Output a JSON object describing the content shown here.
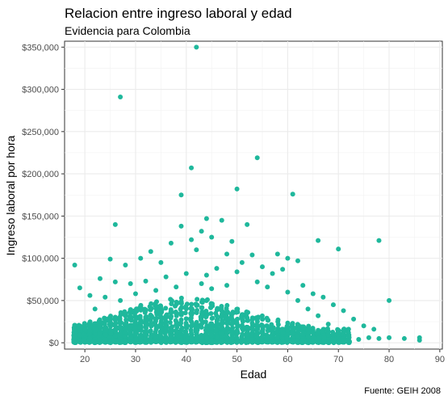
{
  "chart_data": {
    "type": "scatter",
    "title": "Relacion entre ingreso laboral y edad",
    "subtitle": "Evidencia para Colombia",
    "xlabel": "Edad",
    "ylabel": "Ingreso laboral por hora",
    "caption": "Fuente: GEIH 2008",
    "xlim": [
      16,
      90.5
    ],
    "ylim": [
      -7500,
      357000
    ],
    "x_ticks": [
      20,
      30,
      40,
      50,
      60,
      70,
      80,
      90
    ],
    "y_ticks": [
      0,
      50000,
      100000,
      150000,
      200000,
      250000,
      300000,
      350000
    ],
    "y_tick_labels": [
      "$0",
      "$50,000",
      "$100,000",
      "$150,000",
      "$200,000",
      "$250,000",
      "$300,000",
      "$350,000"
    ],
    "grid": true,
    "point_color": "#1FB89C",
    "points": [
      [
        42,
        350000
      ],
      [
        27,
        291000
      ],
      [
        54,
        219000
      ],
      [
        41,
        207000
      ],
      [
        39,
        175000
      ],
      [
        61,
        176000
      ],
      [
        50,
        182000
      ],
      [
        26,
        140000
      ],
      [
        44,
        147000
      ],
      [
        47,
        145000
      ],
      [
        52,
        140000
      ],
      [
        39,
        138000
      ],
      [
        43,
        132000
      ],
      [
        41,
        122000
      ],
      [
        45,
        125000
      ],
      [
        66,
        121000
      ],
      [
        78,
        121000
      ],
      [
        49,
        120000
      ],
      [
        37,
        118000
      ],
      [
        33,
        108000
      ],
      [
        31,
        100000
      ],
      [
        25,
        99000
      ],
      [
        18,
        92000
      ],
      [
        70,
        111000
      ],
      [
        42,
        110000
      ],
      [
        48,
        105000
      ],
      [
        53,
        104000
      ],
      [
        58,
        105000
      ],
      [
        60,
        100000
      ],
      [
        62,
        97000
      ],
      [
        51,
        95000
      ],
      [
        55,
        90000
      ],
      [
        35,
        95000
      ],
      [
        28,
        92000
      ],
      [
        46,
        88000
      ],
      [
        23,
        76000
      ],
      [
        19,
        65000
      ],
      [
        21,
        56000
      ],
      [
        24,
        54000
      ],
      [
        26,
        72000
      ],
      [
        29,
        70000
      ],
      [
        32,
        73000
      ],
      [
        36,
        78000
      ],
      [
        40,
        82000
      ],
      [
        44,
        80000
      ],
      [
        50,
        84000
      ],
      [
        57,
        82000
      ],
      [
        59,
        87000
      ],
      [
        63,
        68000
      ],
      [
        65,
        58000
      ],
      [
        67,
        54000
      ],
      [
        69,
        45000
      ],
      [
        71,
        38000
      ],
      [
        73,
        28000
      ],
      [
        75,
        20000
      ],
      [
        77,
        16000
      ],
      [
        80,
        50000
      ],
      [
        80,
        6000
      ],
      [
        76,
        6000
      ],
      [
        83,
        5000
      ],
      [
        86,
        6000
      ],
      [
        86,
        3000
      ],
      [
        74,
        4000
      ],
      [
        78,
        5000
      ],
      [
        72,
        8000
      ],
      [
        70,
        12000
      ],
      [
        68,
        22000
      ],
      [
        66,
        32000
      ],
      [
        64,
        40000
      ],
      [
        62,
        50000
      ],
      [
        60,
        60000
      ],
      [
        56,
        66000
      ],
      [
        54,
        72000
      ],
      [
        48,
        68000
      ],
      [
        45,
        64000
      ],
      [
        43,
        70000
      ],
      [
        38,
        66000
      ],
      [
        34,
        62000
      ],
      [
        30,
        58000
      ],
      [
        27,
        50000
      ],
      [
        22,
        40000
      ],
      [
        20,
        22000
      ],
      [
        18,
        8000
      ],
      [
        18,
        3000
      ]
    ]
  }
}
